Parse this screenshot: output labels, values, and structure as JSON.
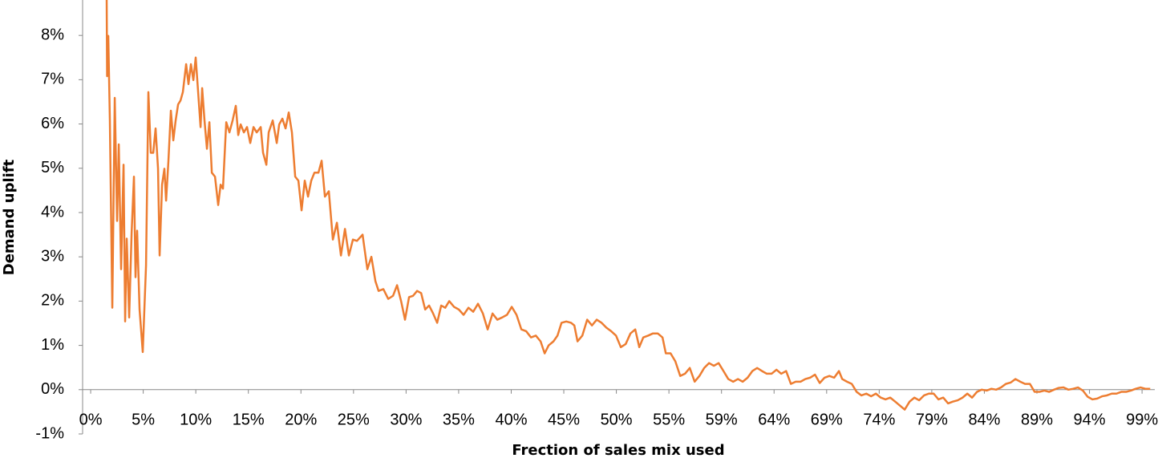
{
  "chart_data": {
    "type": "line",
    "x_label": "Frection of sales mix used",
    "y_label": "Demand uplift",
    "color": "#ed7d31",
    "xlim": [
      -0.76,
      100.3
    ],
    "ylim": [
      -1,
      8.8
    ],
    "xticks": [
      {
        "value": 0,
        "label": "0%"
      },
      {
        "value": 4.955,
        "label": "5%"
      },
      {
        "value": 9.91,
        "label": "10%"
      },
      {
        "value": 14.865,
        "label": "15%"
      },
      {
        "value": 19.82,
        "label": "20%"
      },
      {
        "value": 24.775,
        "label": "25%"
      },
      {
        "value": 29.73,
        "label": "30%"
      },
      {
        "value": 34.685,
        "label": "35%"
      },
      {
        "value": 39.64,
        "label": "40%"
      },
      {
        "value": 44.595,
        "label": "45%"
      },
      {
        "value": 49.55,
        "label": "50%"
      },
      {
        "value": 54.505,
        "label": "55%"
      },
      {
        "value": 59.46,
        "label": "59%"
      },
      {
        "value": 64.415,
        "label": "64%"
      },
      {
        "value": 69.37,
        "label": "69%"
      },
      {
        "value": 74.325,
        "label": "74%"
      },
      {
        "value": 79.28,
        "label": "79%"
      },
      {
        "value": 84.235,
        "label": "84%"
      },
      {
        "value": 89.19,
        "label": "89%"
      },
      {
        "value": 94.145,
        "label": "94%"
      },
      {
        "value": 99.1,
        "label": "99%"
      }
    ],
    "yticks": [
      {
        "value": -1,
        "label": "-1%"
      },
      {
        "value": 0,
        "label": "0%"
      },
      {
        "value": 1,
        "label": "1%"
      },
      {
        "value": 2,
        "label": "2%"
      },
      {
        "value": 3,
        "label": "3%"
      },
      {
        "value": 4,
        "label": "4%"
      },
      {
        "value": 5,
        "label": "5%"
      },
      {
        "value": 6,
        "label": "6%"
      },
      {
        "value": 7,
        "label": "7%"
      },
      {
        "value": 8,
        "label": "8%"
      }
    ],
    "x": [
      1.51,
      1.55,
      1.66,
      1.81,
      2.04,
      2.27,
      2.49,
      2.65,
      2.87,
      3.1,
      3.25,
      3.4,
      3.63,
      3.86,
      4.08,
      4.23,
      4.38,
      4.61,
      4.91,
      5.22,
      5.44,
      5.67,
      5.9,
      6.12,
      6.35,
      6.5,
      6.73,
      6.95,
      7.11,
      7.33,
      7.56,
      7.79,
      8.01,
      8.24,
      8.47,
      8.69,
      9.0,
      9.22,
      9.45,
      9.68,
      9.9,
      10.13,
      10.36,
      10.51,
      10.73,
      10.96,
      11.19,
      11.42,
      11.72,
      12.02,
      12.25,
      12.47,
      12.78,
      13.08,
      13.38,
      13.68,
      13.91,
      14.14,
      14.44,
      14.74,
      15.04,
      15.35,
      15.65,
      16.03,
      16.25,
      16.56,
      16.78,
      17.16,
      17.54,
      17.77,
      18.07,
      18.37,
      18.67,
      18.97,
      19.28,
      19.58,
      19.88,
      20.18,
      20.49,
      20.79,
      21.09,
      21.47,
      21.77,
      22.08,
      22.45,
      22.83,
      23.21,
      23.59,
      23.97,
      24.34,
      24.72,
      25.1,
      25.63,
      26.08,
      26.46,
      26.84,
      27.14,
      27.59,
      28.05,
      28.5,
      28.88,
      29.26,
      29.63,
      30.01,
      30.39,
      30.77,
      31.15,
      31.53,
      31.9,
      32.28,
      32.66,
      33.04,
      33.42,
      33.8,
      34.25,
      34.7,
      35.15,
      35.61,
      36.06,
      36.51,
      36.97,
      37.42,
      37.88,
      38.33,
      38.78,
      39.24,
      39.69,
      40.14,
      40.6,
      41.05,
      41.5,
      41.96,
      42.41,
      42.79,
      43.17,
      43.62,
      44.0,
      44.38,
      44.83,
      45.28,
      45.59,
      45.89,
      46.34,
      46.8,
      47.25,
      47.7,
      48.16,
      48.61,
      49.06,
      49.52,
      49.97,
      50.43,
      50.88,
      51.33,
      51.71,
      52.09,
      52.54,
      53.0,
      53.45,
      53.9,
      54.21,
      54.66,
      55.11,
      55.57,
      56.02,
      56.47,
      56.93,
      57.38,
      57.83,
      58.29,
      58.74,
      59.19,
      59.65,
      60.1,
      60.56,
      61.01,
      61.46,
      61.92,
      62.37,
      62.82,
      63.28,
      63.73,
      64.18,
      64.64,
      65.09,
      65.55,
      66.0,
      66.45,
      66.91,
      67.36,
      67.81,
      68.27,
      68.72,
      69.17,
      69.63,
      70.08,
      70.53,
      70.84,
      71.29,
      71.74,
      72.2,
      72.65,
      73.11,
      73.56,
      74.01,
      74.47,
      74.92,
      75.37,
      75.83,
      76.28,
      76.73,
      77.19,
      77.64,
      78.09,
      78.55,
      79.0,
      79.46,
      79.91,
      80.36,
      80.82,
      81.27,
      81.72,
      82.18,
      82.63,
      83.08,
      83.54,
      83.99,
      84.45,
      84.9,
      85.35,
      85.81,
      86.26,
      86.71,
      87.17,
      87.62,
      88.07,
      88.53,
      88.98,
      89.43,
      89.89,
      90.34,
      90.8,
      91.25,
      91.7,
      92.16,
      92.61,
      93.06,
      93.52,
      93.97,
      94.42,
      94.88,
      95.33,
      95.78,
      96.24,
      96.69,
      97.14,
      97.6,
      98.05,
      98.5,
      98.96,
      99.41,
      99.87
    ],
    "values": [
      8.8,
      7.08,
      7.99,
      6.08,
      1.85,
      6.59,
      3.81,
      5.54,
      2.72,
      5.08,
      1.54,
      3.41,
      1.63,
      3.54,
      4.81,
      2.54,
      3.59,
      1.81,
      0.85,
      2.81,
      6.72,
      5.35,
      5.35,
      5.9,
      4.99,
      3.03,
      4.63,
      4.99,
      4.27,
      5.17,
      6.3,
      5.63,
      6.08,
      6.44,
      6.53,
      6.72,
      7.35,
      6.9,
      7.35,
      6.99,
      7.5,
      6.72,
      5.93,
      6.81,
      6.08,
      5.44,
      6.04,
      4.9,
      4.81,
      4.17,
      4.63,
      4.54,
      6.04,
      5.81,
      6.08,
      6.41,
      5.75,
      5.99,
      5.81,
      5.93,
      5.57,
      5.93,
      5.81,
      5.93,
      5.35,
      5.08,
      5.81,
      6.08,
      5.57,
      5.99,
      6.12,
      5.9,
      6.26,
      5.81,
      4.81,
      4.72,
      4.05,
      4.72,
      4.36,
      4.72,
      4.9,
      4.9,
      5.17,
      4.36,
      4.48,
      3.39,
      3.77,
      3.03,
      3.63,
      3.03,
      3.39,
      3.36,
      3.5,
      2.72,
      3.0,
      2.45,
      2.23,
      2.27,
      2.05,
      2.12,
      2.36,
      2.0,
      1.58,
      2.09,
      2.12,
      2.23,
      2.18,
      1.81,
      1.9,
      1.72,
      1.51,
      1.9,
      1.85,
      2.0,
      1.87,
      1.81,
      1.69,
      1.85,
      1.76,
      1.94,
      1.72,
      1.36,
      1.72,
      1.58,
      1.63,
      1.69,
      1.87,
      1.69,
      1.36,
      1.32,
      1.18,
      1.22,
      1.09,
      0.82,
      1.0,
      1.09,
      1.22,
      1.51,
      1.54,
      1.51,
      1.45,
      1.09,
      1.22,
      1.58,
      1.45,
      1.58,
      1.51,
      1.4,
      1.32,
      1.22,
      0.96,
      1.03,
      1.27,
      1.36,
      0.96,
      1.18,
      1.22,
      1.27,
      1.27,
      1.18,
      0.82,
      0.82,
      0.64,
      0.31,
      0.36,
      0.49,
      0.18,
      0.31,
      0.49,
      0.6,
      0.54,
      0.6,
      0.42,
      0.24,
      0.18,
      0.24,
      0.18,
      0.27,
      0.42,
      0.49,
      0.42,
      0.36,
      0.36,
      0.45,
      0.36,
      0.42,
      0.13,
      0.18,
      0.18,
      0.24,
      0.27,
      0.34,
      0.15,
      0.27,
      0.31,
      0.27,
      0.42,
      0.24,
      0.18,
      0.13,
      -0.05,
      -0.13,
      -0.09,
      -0.15,
      -0.09,
      -0.18,
      -0.22,
      -0.18,
      -0.27,
      -0.36,
      -0.45,
      -0.27,
      -0.18,
      -0.24,
      -0.13,
      -0.09,
      -0.09,
      -0.22,
      -0.18,
      -0.31,
      -0.27,
      -0.24,
      -0.18,
      -0.09,
      -0.18,
      -0.05,
      0,
      -0.02,
      0.02,
      0,
      0.05,
      0.13,
      0.16,
      0.24,
      0.18,
      0.13,
      0.13,
      -0.05,
      -0.05,
      -0.02,
      -0.05,
      0,
      0.04,
      0.05,
      0,
      0.02,
      0.05,
      -0.02,
      -0.16,
      -0.22,
      -0.2,
      -0.15,
      -0.13,
      -0.09,
      -0.09,
      -0.05,
      -0.05,
      -0.02,
      0.02,
      0.05,
      0.02,
      0.02
    ]
  }
}
